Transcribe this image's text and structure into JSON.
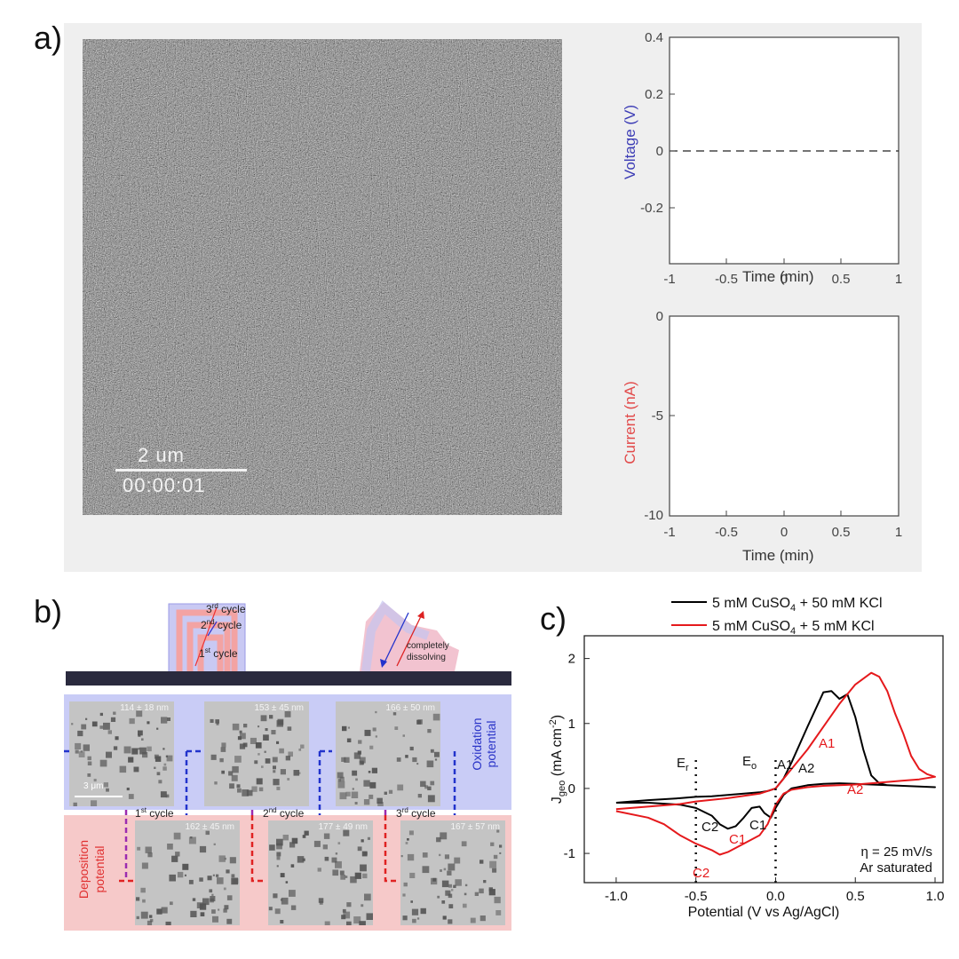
{
  "panel_labels": {
    "a": "a)",
    "b": "b)",
    "c": "c)"
  },
  "panel_a": {
    "scale_bar": "2 um",
    "timestamp": "00:00:01",
    "voltage_plot": {
      "ylabel": "Voltage (V)",
      "xlabel": "Time (min)",
      "xticks": [
        "-1",
        "-0.5",
        "0",
        "0.5",
        "1"
      ],
      "yticks": [
        "0.4",
        "0.2",
        "0",
        "-0.2"
      ]
    },
    "current_plot": {
      "ylabel": "Current (nA)",
      "xlabel": "Time (min)",
      "xticks": [
        "-1",
        "-0.5",
        "0",
        "0.5",
        "1"
      ],
      "yticks": [
        "0",
        "-5",
        "-10"
      ]
    }
  },
  "panel_b": {
    "cycles": {
      "third_num": "3",
      "third_sup": "rd",
      "third_word": " cycle",
      "second_num": "2",
      "second_sup": "nd",
      "second_word": " cycle",
      "first_num": "1",
      "first_sup": "st",
      "first_word": " cycle"
    },
    "dissolving": [
      "completely",
      "dissolving"
    ],
    "oxidation_label": [
      "Oxidation",
      "potential"
    ],
    "deposition_label": [
      "Deposition",
      "potential"
    ],
    "scale_bar": "3 μm",
    "oxidation_tiles": [
      "114 ± 18 nm",
      "153 ± 45 nm",
      "166 ± 50 nm"
    ],
    "deposition_tiles": [
      "162 ± 45 nm",
      "177 ± 49 nm",
      "167 ± 57 nm"
    ],
    "cycle_labels": [
      {
        "num": "1",
        "sup": "st",
        "word": " cycle"
      },
      {
        "num": "2",
        "sup": "nd",
        "word": " cycle"
      },
      {
        "num": "3",
        "sup": "rd",
        "word": " cycle"
      }
    ]
  },
  "chart_data": {
    "type": "line",
    "xlabel": "Potential (V vs Ag/AgCl)",
    "ylabel_main": "J",
    "ylabel_sub": "geo",
    "ylabel_unit": " (mA cm",
    "ylabel_sup": "-2",
    "ylabel_end": ")",
    "xlim": [
      -1.2,
      1.05
    ],
    "ylim": [
      -1.45,
      2.35
    ],
    "xticks": [
      "-1.0",
      "-0.5",
      "0.0",
      "0.5",
      "1.0"
    ],
    "yticks": [
      "-1",
      "0",
      "1",
      "2"
    ],
    "legend_position": "top-right",
    "series": [
      {
        "name": "5 mM CuSO4 + 50 mM KCl",
        "name_parts": [
          "5 mM CuSO",
          "4",
          " + 50 mM KCl"
        ],
        "color": "#000000",
        "x": [
          -1.0,
          -0.8,
          -0.6,
          -0.5,
          -0.4,
          -0.3,
          -0.2,
          -0.1,
          -0.05,
          0.0,
          0.05,
          0.1,
          0.2,
          0.3,
          0.35,
          0.4,
          0.45,
          0.5,
          0.55,
          0.6,
          0.65,
          0.7,
          0.8,
          0.9,
          1.0,
          0.9,
          0.8,
          0.7,
          0.6,
          0.5,
          0.4,
          0.3,
          0.2,
          0.1,
          0.05,
          0.0,
          -0.03,
          -0.07,
          -0.1,
          -0.15,
          -0.2,
          -0.25,
          -0.3,
          -0.35,
          -0.4,
          -0.5,
          -0.6,
          -0.8,
          -1.0
        ],
        "y": [
          -0.22,
          -0.18,
          -0.15,
          -0.13,
          -0.12,
          -0.1,
          -0.08,
          -0.06,
          -0.04,
          0.0,
          0.15,
          0.4,
          0.95,
          1.48,
          1.5,
          1.38,
          1.45,
          1.1,
          0.6,
          0.2,
          0.08,
          0.05,
          0.04,
          0.03,
          0.02,
          0.03,
          0.04,
          0.05,
          0.06,
          0.07,
          0.08,
          0.07,
          0.05,
          0.0,
          -0.1,
          -0.3,
          -0.45,
          -0.38,
          -0.28,
          -0.3,
          -0.45,
          -0.58,
          -0.62,
          -0.55,
          -0.42,
          -0.3,
          -0.25,
          -0.22,
          -0.22
        ]
      },
      {
        "name": "5 mM CuSO4 + 5 mM KCl",
        "name_parts": [
          "5 mM CuSO",
          "4",
          " + 5 mM KCl"
        ],
        "color": "#e5191c",
        "x": [
          -1.0,
          -0.8,
          -0.6,
          -0.5,
          -0.3,
          -0.1,
          0.0,
          0.1,
          0.2,
          0.3,
          0.4,
          0.5,
          0.6,
          0.65,
          0.7,
          0.75,
          0.8,
          0.85,
          0.9,
          0.95,
          1.0,
          0.9,
          0.8,
          0.7,
          0.6,
          0.5,
          0.4,
          0.3,
          0.2,
          0.1,
          0.05,
          0.0,
          -0.05,
          -0.1,
          -0.2,
          -0.3,
          -0.35,
          -0.4,
          -0.5,
          -0.6,
          -0.7,
          -0.8,
          -1.0
        ],
        "y": [
          -0.32,
          -0.28,
          -0.24,
          -0.2,
          -0.15,
          -0.08,
          0.0,
          0.3,
          0.6,
          0.95,
          1.3,
          1.6,
          1.78,
          1.72,
          1.5,
          1.15,
          0.85,
          0.5,
          0.3,
          0.22,
          0.18,
          0.14,
          0.12,
          0.1,
          0.08,
          0.06,
          0.05,
          0.04,
          0.02,
          -0.02,
          -0.08,
          -0.25,
          -0.55,
          -0.72,
          -0.85,
          -0.98,
          -1.02,
          -0.95,
          -0.85,
          -0.72,
          -0.55,
          -0.45,
          -0.35
        ]
      }
    ],
    "annotations": {
      "A1_black": "A1",
      "A2_black": "A2",
      "A1_red": "A1",
      "A2_red": "A2",
      "C1_black": "C1",
      "C2_black": "C2",
      "C1_red": "C1",
      "C2_red": "C2",
      "Er_main": "E",
      "Er_sub": "r",
      "Eo_main": "E",
      "Eo_sub": "o",
      "scan_rate": "η = 25 mV/s",
      "atmosphere": "Ar saturated"
    }
  }
}
